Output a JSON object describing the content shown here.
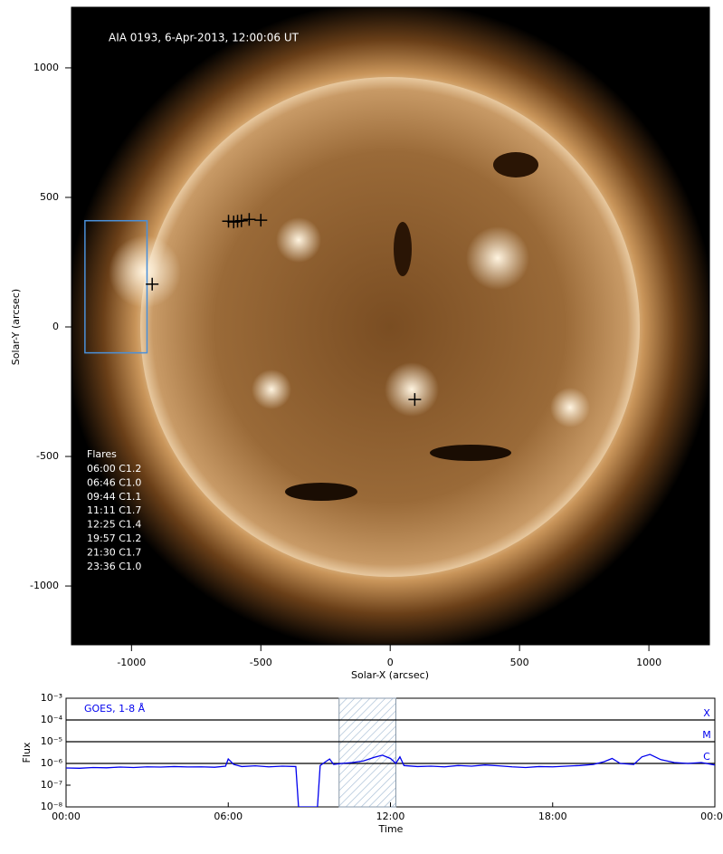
{
  "chart_data": [
    {
      "type": "image",
      "title": "AIA 0193, 6-Apr-2013, 12:00:06 UT",
      "xlabel": "Solar-X (arcsec)",
      "ylabel": "Solar-Y (arcsec)",
      "xlim": [
        -1232,
        1234
      ],
      "ylim": [
        -1227,
        1234
      ],
      "xticks": [
        -1000,
        -500,
        0,
        500,
        1000
      ],
      "yticks": [
        -1000,
        -500,
        0,
        500,
        1000
      ],
      "box": {
        "x": [
          -1180,
          -940
        ],
        "y": [
          -100,
          410
        ],
        "color": "#4a90d9"
      },
      "flare_locations": {
        "x": [
          -625,
          -605,
          -590,
          -575,
          -545,
          -500,
          -920,
          95
        ],
        "y": [
          408,
          405,
          408,
          410,
          415,
          412,
          165,
          -280
        ]
      },
      "flares_title": "Flares",
      "flares": [
        "06:00 C1.2",
        "06:46 C1.0",
        "09:44 C1.1",
        "11:11 C1.7",
        "12:25 C1.4",
        "19:57 C1.2",
        "21:30 C1.7",
        "23:36 C1.0"
      ]
    },
    {
      "type": "line",
      "xlabel": "Time",
      "ylabel": "Flux",
      "log_y": true,
      "xlim": [
        0,
        24
      ],
      "ylim": [
        1e-08,
        0.001
      ],
      "xticks": [
        {
          "value": 0,
          "label": "00:00"
        },
        {
          "value": 6,
          "label": "06:00"
        },
        {
          "value": 12,
          "label": "12:00"
        },
        {
          "value": 18,
          "label": "18:00"
        },
        {
          "value": 24,
          "label": "00:00"
        }
      ],
      "yticks": [
        {
          "value": 1e-08,
          "label": "10⁻⁸"
        },
        {
          "value": 1e-07,
          "label": "10⁻⁷"
        },
        {
          "value": 1e-06,
          "label": "10⁻⁶"
        },
        {
          "value": 1e-05,
          "label": "10⁻⁵"
        },
        {
          "value": 0.0001,
          "label": "10⁻⁴"
        },
        {
          "value": 0.001,
          "label": "10⁻³"
        }
      ],
      "class_levels": [
        {
          "label": "X",
          "value": 0.0001
        },
        {
          "label": "M",
          "value": 1e-05
        },
        {
          "label": "C",
          "value": 1e-06
        }
      ],
      "highlight": [
        10.1,
        12.2
      ],
      "x": [
        0,
        0.5,
        1,
        1.5,
        2,
        2.5,
        3,
        3.5,
        4,
        4.5,
        5,
        5.5,
        5.9,
        6.0,
        6.2,
        6.5,
        7,
        7.5,
        8,
        8.5,
        8.6,
        9.3,
        9.4,
        9.6,
        9.75,
        9.9,
        10.2,
        10.6,
        11,
        11.4,
        11.7,
        12,
        12.2,
        12.35,
        12.5,
        13,
        13.5,
        14,
        14.5,
        15,
        15.5,
        16,
        16.5,
        17,
        17.5,
        18,
        18.5,
        19,
        19.5,
        19.9,
        20.2,
        20.5,
        21,
        21.3,
        21.6,
        22,
        22.5,
        23,
        23.5,
        24
      ],
      "series": [
        {
          "name": "GOES, 1-8 Å",
          "color": "#0000ee",
          "values": [
            6.2e-07,
            6e-07,
            6.5e-07,
            6.3e-07,
            6.8e-07,
            6.5e-07,
            7e-07,
            6.8e-07,
            7.2e-07,
            6.9e-07,
            7e-07,
            6.7e-07,
            7.5e-07,
            1.6e-06,
            9e-07,
            7.2e-07,
            7.8e-07,
            7e-07,
            7.5e-07,
            7.2e-07,
            1e-08,
            1e-08,
            8e-07,
            1.2e-06,
            1.6e-06,
            9e-07,
            1e-06,
            1.1e-06,
            1.3e-06,
            1.9e-06,
            2.4e-06,
            1.7e-06,
            1e-06,
            2e-06,
            8e-07,
            7.2e-07,
            7.5e-07,
            7e-07,
            8e-07,
            7.5e-07,
            8.5e-07,
            7.8e-07,
            7e-07,
            6.5e-07,
            7.2e-07,
            7e-07,
            7.5e-07,
            8e-07,
            9e-07,
            1.2e-06,
            1.7e-06,
            1e-06,
            9e-07,
            2e-06,
            2.6e-06,
            1.5e-06,
            1.1e-06,
            1e-06,
            1.1e-06,
            8.5e-07
          ]
        }
      ]
    }
  ]
}
